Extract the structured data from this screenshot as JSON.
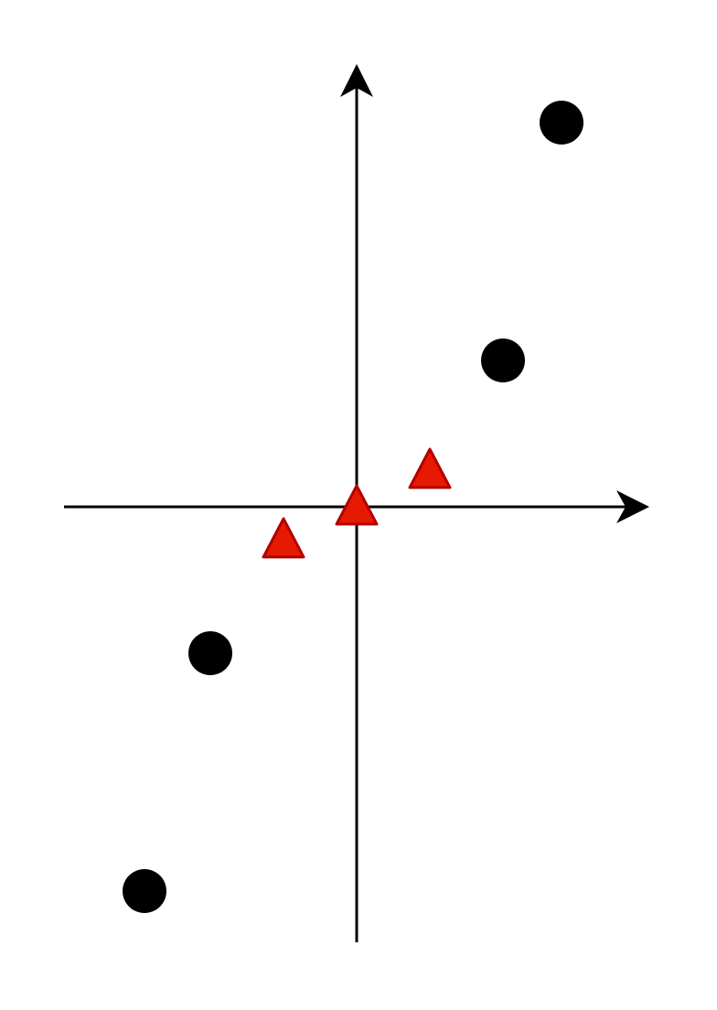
{
  "chart_data": {
    "type": "scatter",
    "title": "",
    "xlabel": "",
    "ylabel": "",
    "grid": false,
    "legend": "none",
    "axes_cross_at_origin": true,
    "x_axis_arrow": true,
    "y_axis_arrow": true,
    "xlim": [
      -4,
      4
    ],
    "ylim": [
      -6,
      6
    ],
    "series": [
      {
        "marker": "circle",
        "color": "#000000",
        "points": [
          {
            "x": 2.8,
            "y": 5.25
          },
          {
            "x": 2.0,
            "y": 2.0
          },
          {
            "x": -2.0,
            "y": -2.0
          },
          {
            "x": -2.9,
            "y": -5.25
          }
        ]
      },
      {
        "marker": "triangle",
        "color": "#e61a00",
        "stroke": "#b20000",
        "points": [
          {
            "x": 1.0,
            "y": 0.5
          },
          {
            "x": 0.0,
            "y": 0.0
          },
          {
            "x": -1.0,
            "y": -0.45
          }
        ]
      }
    ]
  }
}
